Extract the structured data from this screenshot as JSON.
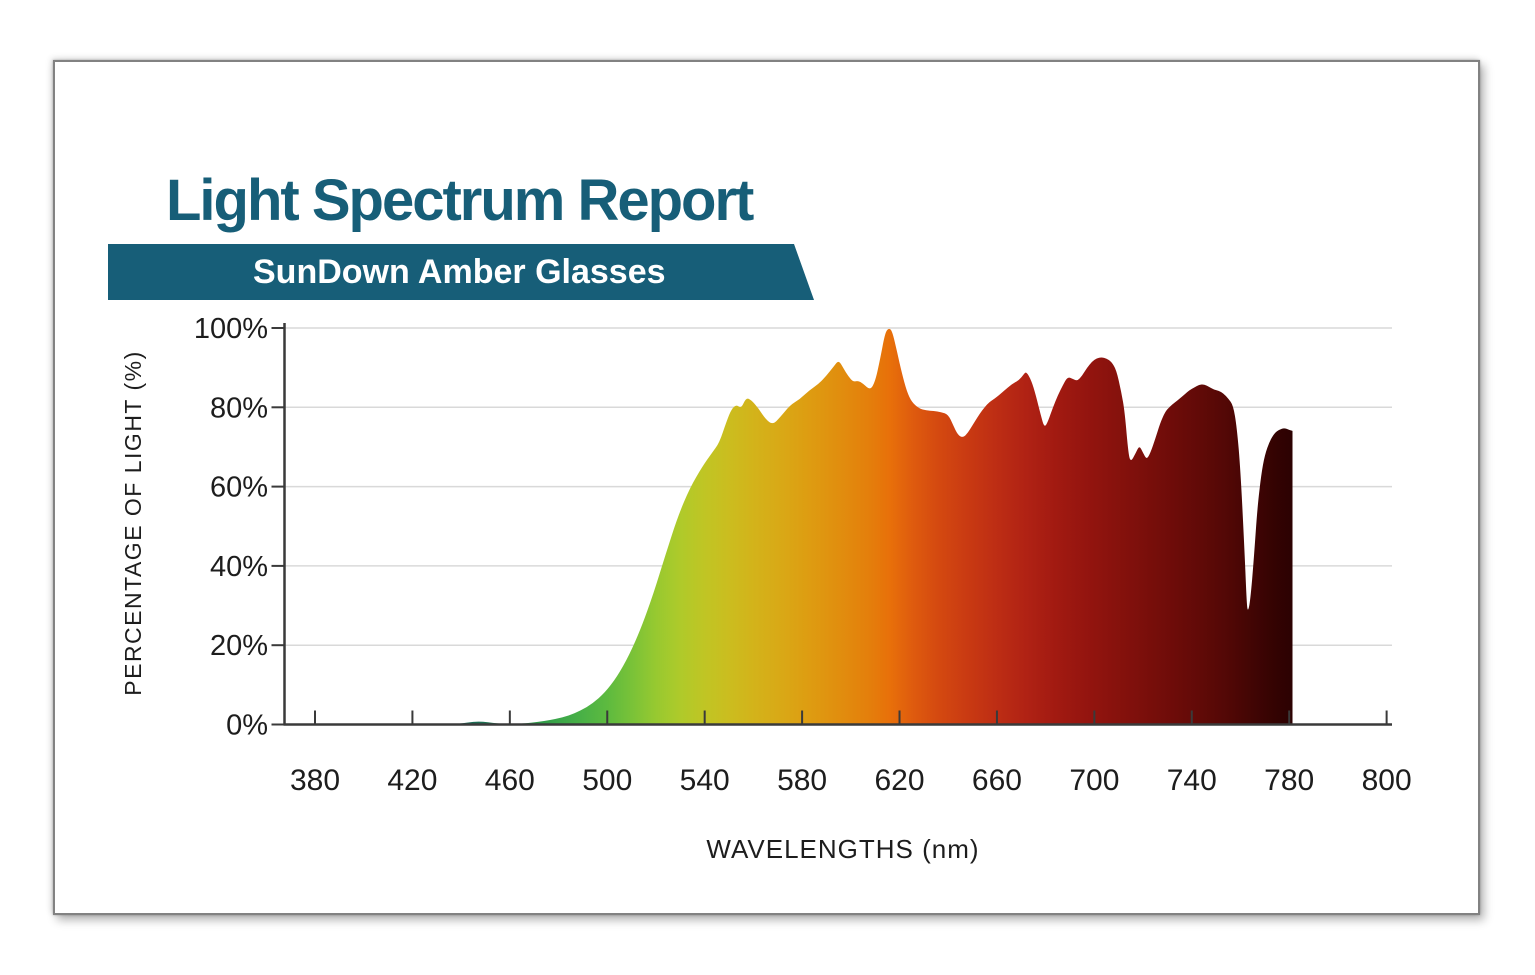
{
  "page": {
    "title": "Light Spectrum Report",
    "banner": "SunDown Amber Glasses"
  },
  "colors": {
    "accent_teal": "#175E78",
    "axis": "#3a3a3a",
    "grid": "#d9d9d9",
    "label": "#1d1d1d"
  },
  "chart_data": {
    "type": "area",
    "title": "Light Spectrum Report",
    "subtitle": "SunDown Amber Glasses",
    "xlabel": "WAVELENGTHS (nm)",
    "ylabel": "PERCENTAGE OF LIGHT (%)",
    "x_tick_labels": [
      "380",
      "420",
      "460",
      "500",
      "540",
      "580",
      "620",
      "660",
      "700",
      "740",
      "780",
      "800"
    ],
    "y_tick_labels": [
      "100%",
      "80%",
      "60%",
      "40%",
      "20%",
      "0%"
    ],
    "xlim": [
      380,
      800
    ],
    "ylim": [
      0,
      100
    ],
    "grid": true,
    "legend": false,
    "x_unit": "nm",
    "y_unit": "%",
    "points": [
      [
        380,
        0
      ],
      [
        400,
        0
      ],
      [
        420,
        0
      ],
      [
        432,
        0
      ],
      [
        438,
        0.1
      ],
      [
        443,
        0.5
      ],
      [
        447,
        0.8
      ],
      [
        451,
        0.55
      ],
      [
        455,
        0.25
      ],
      [
        459,
        0.12
      ],
      [
        464,
        0.2
      ],
      [
        469,
        0.45
      ],
      [
        474,
        0.85
      ],
      [
        479,
        1.4
      ],
      [
        484,
        2.2
      ],
      [
        489,
        3.5
      ],
      [
        494,
        5.3
      ],
      [
        499,
        8
      ],
      [
        504,
        12
      ],
      [
        509,
        17.5
      ],
      [
        514,
        24.5
      ],
      [
        519,
        33
      ],
      [
        524,
        43
      ],
      [
        529,
        52.5
      ],
      [
        534,
        59.8
      ],
      [
        539,
        65
      ],
      [
        543,
        68.5
      ],
      [
        546,
        71
      ],
      [
        549,
        76.5
      ],
      [
        551,
        79.5
      ],
      [
        553,
        80.7
      ],
      [
        555,
        79.7
      ],
      [
        557,
        82.4
      ],
      [
        559,
        81.9
      ],
      [
        562,
        79.8
      ],
      [
        565,
        77
      ],
      [
        568,
        75.6
      ],
      [
        571,
        77.5
      ],
      [
        575,
        80.5
      ],
      [
        579,
        82
      ],
      [
        583,
        84.3
      ],
      [
        587,
        86
      ],
      [
        590,
        88
      ],
      [
        593,
        90.3
      ],
      [
        595,
        91.9
      ],
      [
        597,
        89.8
      ],
      [
        599,
        87.8
      ],
      [
        601,
        86.4
      ],
      [
        603,
        86.7
      ],
      [
        605,
        86
      ],
      [
        608,
        84.3
      ],
      [
        610,
        86.5
      ],
      [
        612,
        92
      ],
      [
        614,
        98.6
      ],
      [
        615.5,
        100
      ],
      [
        617,
        99.3
      ],
      [
        619,
        94
      ],
      [
        621,
        88.5
      ],
      [
        623,
        84
      ],
      [
        625,
        81.3
      ],
      [
        628,
        79.7
      ],
      [
        631,
        79.2
      ],
      [
        634,
        79.1
      ],
      [
        637,
        78.8
      ],
      [
        640,
        78.2
      ],
      [
        642,
        75.5
      ],
      [
        644,
        73
      ],
      [
        646,
        72.3
      ],
      [
        648,
        73.5
      ],
      [
        650,
        75.5
      ],
      [
        652,
        77.5
      ],
      [
        654,
        79.3
      ],
      [
        656,
        80.8
      ],
      [
        658,
        81.8
      ],
      [
        660,
        82.6
      ],
      [
        663,
        84.2
      ],
      [
        666,
        85.8
      ],
      [
        669,
        86.8
      ],
      [
        671,
        88.3
      ],
      [
        672,
        89
      ],
      [
        674,
        87
      ],
      [
        676,
        83
      ],
      [
        678,
        78
      ],
      [
        679.5,
        74.8
      ],
      [
        681,
        76.5
      ],
      [
        683,
        80
      ],
      [
        685,
        83
      ],
      [
        687,
        85.5
      ],
      [
        689,
        87.7
      ],
      [
        691,
        87.2
      ],
      [
        693,
        86.6
      ],
      [
        695,
        88
      ],
      [
        697,
        90
      ],
      [
        699,
        91.5
      ],
      [
        701,
        92.4
      ],
      [
        703,
        92.6
      ],
      [
        705,
        92.3
      ],
      [
        707,
        91.5
      ],
      [
        709,
        89.5
      ],
      [
        711,
        84
      ],
      [
        712.5,
        78.8
      ],
      [
        714,
        68
      ],
      [
        715,
        66.2
      ],
      [
        717,
        68.5
      ],
      [
        718.5,
        70.4
      ],
      [
        720,
        68.5
      ],
      [
        721.5,
        66.8
      ],
      [
        723,
        68.5
      ],
      [
        725,
        72
      ],
      [
        727,
        76
      ],
      [
        729,
        78.8
      ],
      [
        731,
        80.2
      ],
      [
        733,
        81.2
      ],
      [
        735,
        82.2
      ],
      [
        737,
        83.2
      ],
      [
        739,
        84.3
      ],
      [
        741,
        85
      ],
      [
        743,
        85.7
      ],
      [
        745,
        85.8
      ],
      [
        747,
        85.2
      ],
      [
        749,
        84.5
      ],
      [
        751,
        84.2
      ],
      [
        753,
        83.5
      ],
      [
        755,
        82.2
      ],
      [
        757,
        80.5
      ],
      [
        758.5,
        75
      ],
      [
        760,
        64
      ],
      [
        761.5,
        46
      ],
      [
        762.5,
        31
      ],
      [
        763,
        28.3
      ],
      [
        764,
        31
      ],
      [
        765.5,
        42
      ],
      [
        767,
        55
      ],
      [
        768.5,
        63
      ],
      [
        770,
        68
      ],
      [
        772,
        71.5
      ],
      [
        774,
        73.5
      ],
      [
        776,
        74.4
      ],
      [
        778,
        74.8
      ],
      [
        780,
        74.3
      ]
    ],
    "gradient_stops": [
      {
        "wavelength": 380,
        "color": "#1b6457"
      },
      {
        "wavelength": 440,
        "color": "#1b6457"
      },
      {
        "wavelength": 458,
        "color": "#1f7a4b"
      },
      {
        "wavelength": 470,
        "color": "#2b9547"
      },
      {
        "wavelength": 480,
        "color": "#3ba649"
      },
      {
        "wavelength": 490,
        "color": "#4ab146"
      },
      {
        "wavelength": 500,
        "color": "#5dba3f"
      },
      {
        "wavelength": 510,
        "color": "#79c238"
      },
      {
        "wavelength": 520,
        "color": "#97c930"
      },
      {
        "wavelength": 530,
        "color": "#afca2a"
      },
      {
        "wavelength": 540,
        "color": "#c0c524"
      },
      {
        "wavelength": 550,
        "color": "#cbbd1f"
      },
      {
        "wavelength": 560,
        "color": "#d3b31a"
      },
      {
        "wavelength": 572,
        "color": "#d9a816"
      },
      {
        "wavelength": 584,
        "color": "#de9b11"
      },
      {
        "wavelength": 596,
        "color": "#e18d0e"
      },
      {
        "wavelength": 608,
        "color": "#e47e0b"
      },
      {
        "wavelength": 616,
        "color": "#e8700a"
      },
      {
        "wavelength": 626,
        "color": "#de5a0e"
      },
      {
        "wavelength": 636,
        "color": "#d44910"
      },
      {
        "wavelength": 648,
        "color": "#c93a12"
      },
      {
        "wavelength": 660,
        "color": "#bd2d14"
      },
      {
        "wavelength": 672,
        "color": "#b02214"
      },
      {
        "wavelength": 684,
        "color": "#a21a11"
      },
      {
        "wavelength": 696,
        "color": "#95150f"
      },
      {
        "wavelength": 708,
        "color": "#88120d"
      },
      {
        "wavelength": 720,
        "color": "#7b0f0b"
      },
      {
        "wavelength": 732,
        "color": "#6e0c09"
      },
      {
        "wavelength": 744,
        "color": "#600a07"
      },
      {
        "wavelength": 756,
        "color": "#500705"
      },
      {
        "wavelength": 766,
        "color": "#400504"
      },
      {
        "wavelength": 774,
        "color": "#340302"
      },
      {
        "wavelength": 780,
        "color": "#2d0202"
      }
    ]
  }
}
